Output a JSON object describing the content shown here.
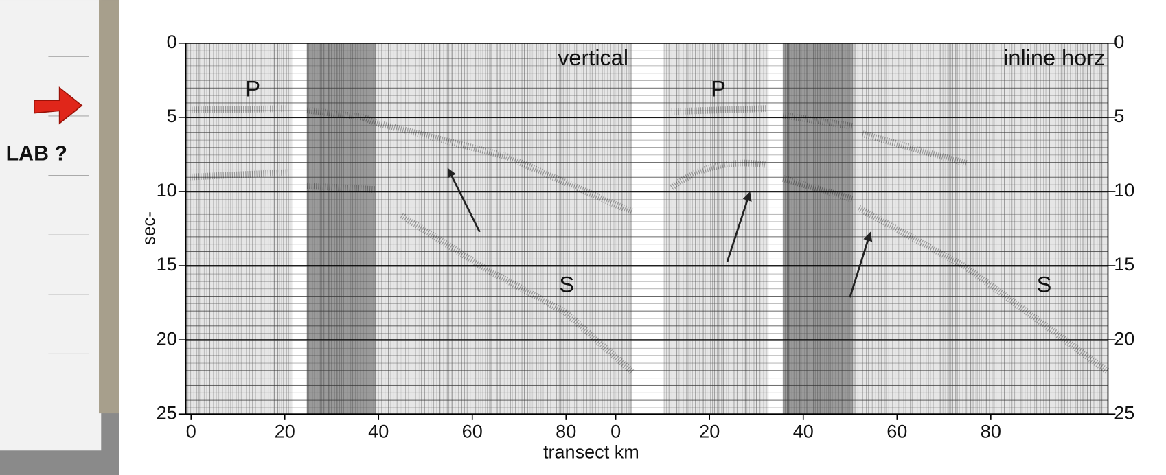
{
  "chart_data": {
    "type": "seismic-section",
    "annotation": "LAB ?",
    "ylabel": "sec-",
    "xlabel": "transect km",
    "ylim": [
      0,
      25
    ],
    "yticks": [
      0,
      5,
      10,
      15,
      20,
      25
    ],
    "panels": [
      {
        "title": "vertical",
        "xlim": [
          -1.1,
          94.1
        ],
        "xticks": [
          0,
          20,
          40,
          60,
          80
        ],
        "phase_labels": [
          "P",
          "S"
        ]
      },
      {
        "title": "inline horz",
        "xlim": [
          0,
          105
        ],
        "xticks": [
          0,
          20,
          40,
          60,
          80
        ],
        "phase_labels": [
          "P",
          "S"
        ]
      }
    ]
  }
}
